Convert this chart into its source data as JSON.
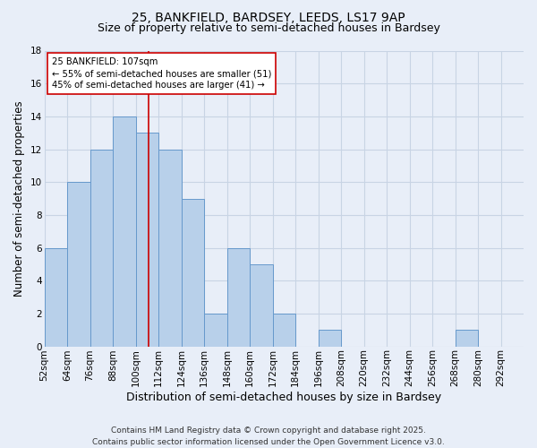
{
  "title1": "25, BANKFIELD, BARDSEY, LEEDS, LS17 9AP",
  "title2": "Size of property relative to semi-detached houses in Bardsey",
  "xlabel": "Distribution of semi-detached houses by size in Bardsey",
  "ylabel": "Number of semi-detached properties",
  "bin_labels": [
    "52sqm",
    "64sqm",
    "76sqm",
    "88sqm",
    "100sqm",
    "112sqm",
    "124sqm",
    "136sqm",
    "148sqm",
    "160sqm",
    "172sqm",
    "184sqm",
    "196sqm",
    "208sqm",
    "220sqm",
    "232sqm",
    "244sqm",
    "256sqm",
    "268sqm",
    "280sqm",
    "292sqm"
  ],
  "bin_edges": [
    52,
    64,
    76,
    88,
    100,
    112,
    124,
    136,
    148,
    160,
    172,
    184,
    196,
    208,
    220,
    232,
    244,
    256,
    268,
    280,
    292
  ],
  "counts": [
    6,
    10,
    12,
    14,
    13,
    12,
    9,
    2,
    6,
    5,
    2,
    0,
    1,
    0,
    0,
    0,
    0,
    0,
    1,
    0
  ],
  "bar_color": "#b8d0ea",
  "bar_edgecolor": "#6699cc",
  "property_size": 107,
  "vline_color": "#cc0000",
  "annotation_text": "25 BANKFIELD: 107sqm\n← 55% of semi-detached houses are smaller (51)\n45% of semi-detached houses are larger (41) →",
  "annotation_box_edgecolor": "#cc0000",
  "annotation_box_facecolor": "#ffffff",
  "ylim": [
    0,
    18
  ],
  "yticks": [
    0,
    2,
    4,
    6,
    8,
    10,
    12,
    14,
    16,
    18
  ],
  "grid_color": "#c8d4e4",
  "background_color": "#e8eef8",
  "footer_text": "Contains HM Land Registry data © Crown copyright and database right 2025.\nContains public sector information licensed under the Open Government Licence v3.0.",
  "title1_fontsize": 10,
  "title2_fontsize": 9,
  "xlabel_fontsize": 9,
  "ylabel_fontsize": 8.5,
  "tick_fontsize": 7.5,
  "footer_fontsize": 6.5
}
